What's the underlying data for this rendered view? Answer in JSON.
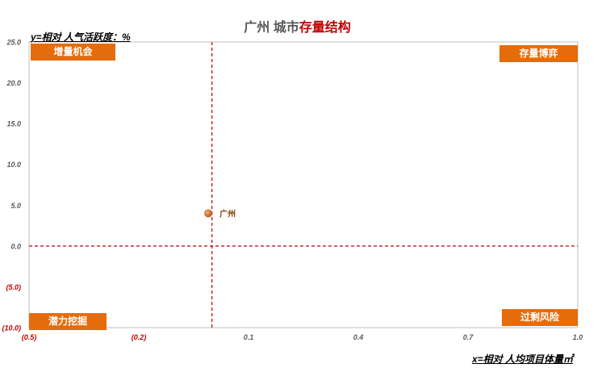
{
  "title": {
    "prefix": "广州 城市",
    "highlight": "存量结构"
  },
  "axis_labels": {
    "y": "y=相对 人气活跃度：%",
    "x": "x=相对 人均项目体量㎡"
  },
  "quadrants": {
    "top_left": "增量机会",
    "top_right": "存量博弈",
    "bottom_left": "潜力挖掘",
    "bottom_right": "过剩风险"
  },
  "colors": {
    "point": "#c55a11",
    "divider": "#c00000",
    "quadrant_fill": "#e46c0a",
    "negative_tick": "#c00000"
  },
  "chart_data": {
    "type": "scatter",
    "title": "广州 城市存量结构",
    "xlabel": "x=相对 人均项目体量㎡",
    "ylabel": "y=相对 人气活跃度：%",
    "xlim": [
      -0.5,
      1.0
    ],
    "ylim": [
      -10,
      25
    ],
    "x_ticks": [
      {
        "value": -0.5,
        "label": "(0.5)"
      },
      {
        "value": -0.2,
        "label": "(0.2)"
      },
      {
        "value": 0.1,
        "label": "0.1"
      },
      {
        "value": 0.4,
        "label": "0.4"
      },
      {
        "value": 0.7,
        "label": "0.7"
      },
      {
        "value": 1.0,
        "label": "1.0"
      }
    ],
    "y_ticks": [
      {
        "value": 25,
        "label": "25.0"
      },
      {
        "value": 20,
        "label": "20.0"
      },
      {
        "value": 15,
        "label": "15.0"
      },
      {
        "value": 10,
        "label": "10.0"
      },
      {
        "value": 5,
        "label": "5.0"
      },
      {
        "value": 0,
        "label": "0.0"
      },
      {
        "value": -5,
        "label": "(5.0)"
      },
      {
        "value": -10,
        "label": "(10.0)"
      }
    ],
    "reference_lines": {
      "x": 0.0,
      "y": 0.0
    },
    "points": [
      {
        "label": "广州",
        "x": -0.01,
        "y": 4.0
      }
    ],
    "grid": false,
    "legend": "none"
  }
}
